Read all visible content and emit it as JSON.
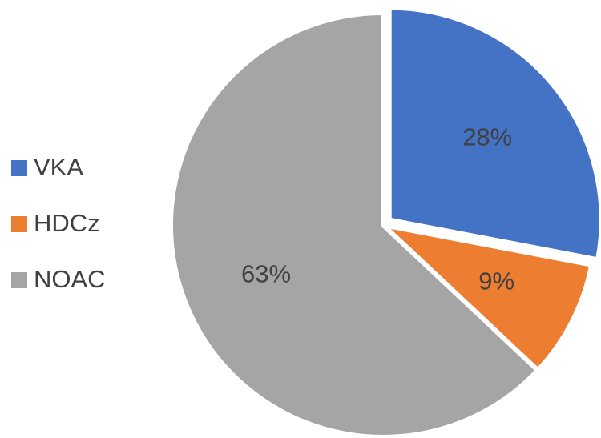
{
  "chart_data": {
    "type": "pie",
    "categories": [
      "VKA",
      "HDCz",
      "NOAC"
    ],
    "values": [
      28,
      9,
      63
    ],
    "value_labels": [
      "28%",
      "9%",
      "63%"
    ],
    "colors": [
      "#4472c4",
      "#ed7d31",
      "#a5a5a5"
    ],
    "legend": "left"
  }
}
